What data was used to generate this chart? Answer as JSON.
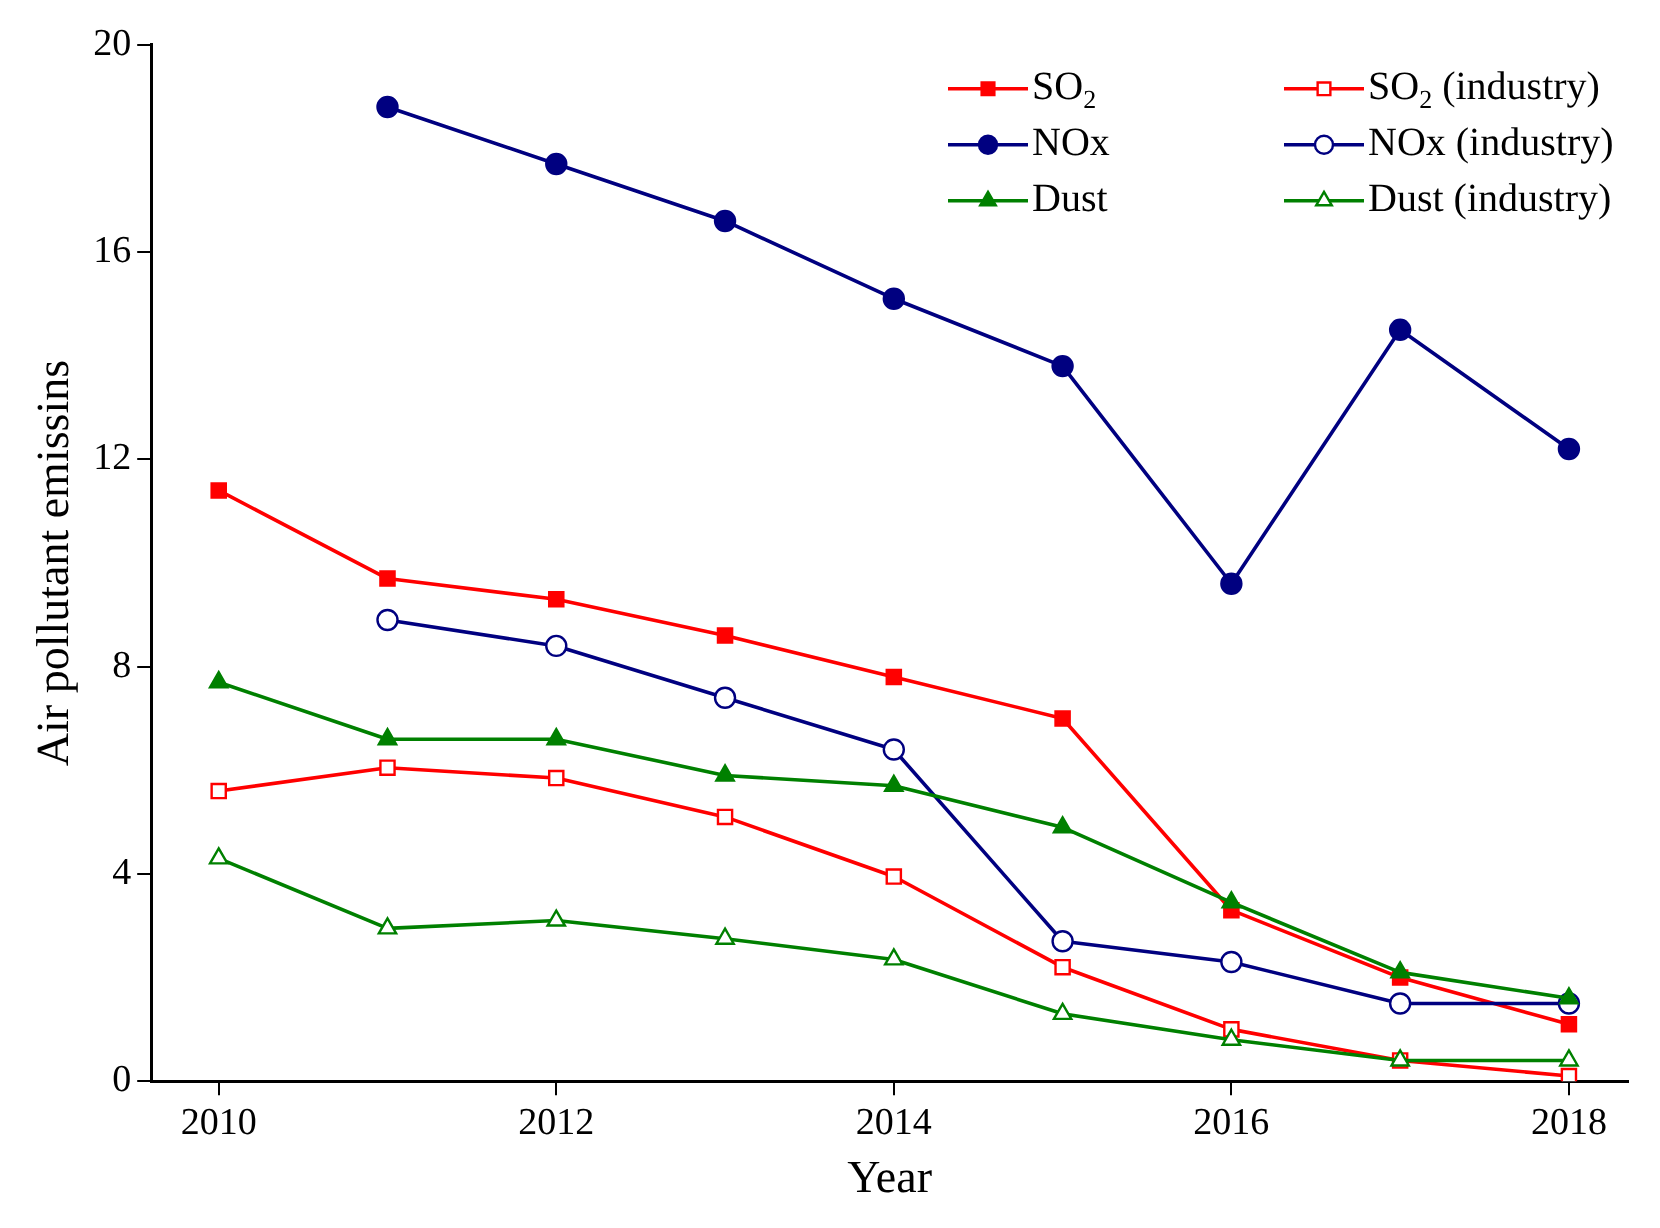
{
  "chart_data": {
    "type": "line",
    "xlabel": "Year",
    "ylabel": "Air pollutant emissins",
    "x": [
      2010,
      2011,
      2012,
      2013,
      2014,
      2015,
      2016,
      2017,
      2018
    ],
    "xlim": [
      2009.6,
      2018.35
    ],
    "xticks": [
      2010,
      2012,
      2014,
      2016,
      2018
    ],
    "ylim": [
      0,
      20
    ],
    "yticks": [
      0,
      4,
      8,
      12,
      16,
      20
    ],
    "grid": false,
    "legend": "top right",
    "line_style": "solid",
    "series": [
      {
        "name": "SO$_{2}$",
        "color": "#ff0000",
        "marker": "square",
        "values": [
          11.4,
          9.7,
          9.3,
          8.6,
          7.8,
          7.0,
          3.3,
          2.0,
          1.1
        ]
      },
      {
        "name": "SO$_{2}$ (industry)",
        "color": "#ff0000",
        "marker": "square",
        "values": [
          5.6,
          6.05,
          5.85,
          5.1,
          3.95,
          2.2,
          1.0,
          0.4,
          0.1
        ]
      },
      {
        "name": "NOx",
        "color": "#000080",
        "marker": "circle",
        "values": [
          null,
          18.8,
          17.7,
          16.6,
          15.1,
          13.8,
          9.6,
          14.5,
          12.2
        ]
      },
      {
        "name": "NOx (industry)",
        "color": "#000080",
        "marker": "circle",
        "values": [
          null,
          8.9,
          8.4,
          7.4,
          6.4,
          2.7,
          2.3,
          1.5,
          1.5
        ]
      },
      {
        "name": "Dust",
        "color": "#008000",
        "marker": "triangle",
        "values": [
          7.7,
          6.6,
          6.6,
          5.9,
          5.7,
          4.9,
          3.45,
          2.1,
          1.6
        ]
      },
      {
        "name": "Dust (industry)",
        "color": "#008000",
        "marker": "triangle",
        "values": [
          4.3,
          2.95,
          3.1,
          2.75,
          2.35,
          1.3,
          0.8,
          0.4,
          0.4
        ]
      }
    ]
  }
}
